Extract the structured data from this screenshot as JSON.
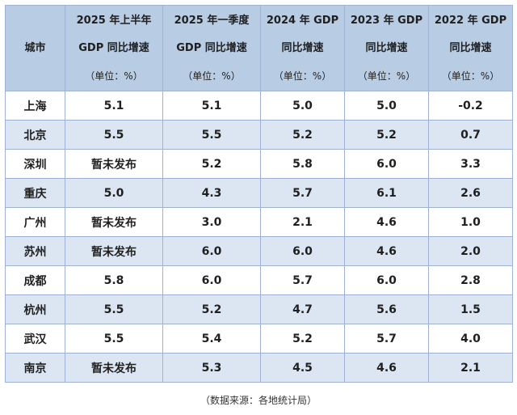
{
  "table": {
    "headers": [
      {
        "lines": [
          "城市"
        ]
      },
      {
        "lines": [
          "2025 年上半年",
          "GDP 同比增速",
          "（单位：%）"
        ]
      },
      {
        "lines": [
          "2025 年一季度",
          "GDP 同比增速",
          "（单位：%）"
        ]
      },
      {
        "lines": [
          "2024 年 GDP",
          "同比增速",
          "（单位：%）"
        ]
      },
      {
        "lines": [
          "2023 年 GDP",
          "同比增速",
          "（单位：%）"
        ]
      },
      {
        "lines": [
          "2022 年 GDP",
          "同比增速",
          "（单位：%）"
        ]
      }
    ],
    "rows": [
      [
        "上海",
        "5.1",
        "5.1",
        "5.0",
        "5.0",
        "-0.2"
      ],
      [
        "北京",
        "5.5",
        "5.5",
        "5.2",
        "5.2",
        "0.7"
      ],
      [
        "深圳",
        "暂未发布",
        "5.2",
        "5.8",
        "6.0",
        "3.3"
      ],
      [
        "重庆",
        "5.0",
        "4.3",
        "5.7",
        "6.1",
        "2.6"
      ],
      [
        "广州",
        "暂未发布",
        "3.0",
        "2.1",
        "4.6",
        "1.0"
      ],
      [
        "苏州",
        "暂未发布",
        "6.0",
        "6.0",
        "4.6",
        "2.0"
      ],
      [
        "成都",
        "5.8",
        "6.0",
        "5.7",
        "6.0",
        "2.8"
      ],
      [
        "杭州",
        "5.5",
        "5.2",
        "4.7",
        "5.6",
        "1.5"
      ],
      [
        "武汉",
        "5.5",
        "5.4",
        "5.2",
        "5.7",
        "4.0"
      ],
      [
        "南京",
        "暂未发布",
        "5.3",
        "4.5",
        "4.6",
        "2.1"
      ]
    ]
  },
  "footnote": "（数据来源：各地统计局）",
  "colors": {
    "header_bg": "#b8cce4",
    "row_alt_bg": "#dce6f2",
    "row_bg": "#ffffff",
    "border": "#9fb2d6"
  }
}
